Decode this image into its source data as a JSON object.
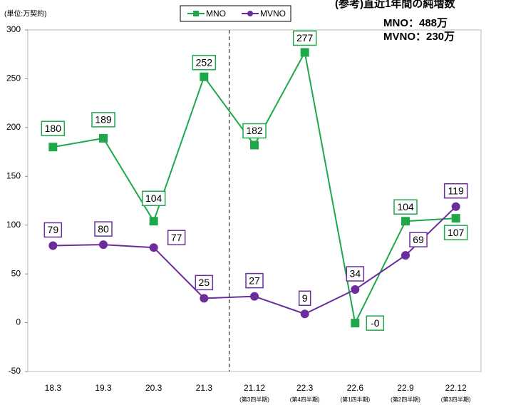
{
  "chart_data": {
    "type": "line",
    "unit_label": "(単位:万契約)",
    "annotation": [
      "(参考)直近1年間の純増数",
      "MNO：488万",
      "MVNO：230万"
    ],
    "categories": [
      "18.3",
      "19.3",
      "20.3",
      "21.3",
      "21.12",
      "22.3",
      "22.6",
      "22.9",
      "22.12"
    ],
    "category_notes": [
      null,
      null,
      null,
      null,
      "(第3四半期)",
      "(第4四半期)",
      "(第1四半期)",
      "(第2四半期)",
      "(第3四半期)"
    ],
    "series": [
      {
        "name": "MNO",
        "color": "#1fa84a",
        "marker": "square",
        "values": [
          180,
          189,
          104,
          252,
          182,
          277,
          -0.4,
          104,
          107
        ],
        "value_labels": [
          "180",
          "189",
          "104",
          "252",
          "182",
          "277",
          "-0",
          "104",
          "107"
        ]
      },
      {
        "name": "MVNO",
        "color": "#6b2d9b",
        "marker": "circle",
        "values": [
          79,
          80,
          77,
          25,
          27,
          9,
          34,
          69,
          119
        ]
      }
    ],
    "negative_label_color": "#e60012",
    "ylim": [
      -50,
      300
    ],
    "yticks": [
      -50,
      0,
      50,
      100,
      150,
      200,
      250,
      300
    ],
    "legend": "top"
  }
}
